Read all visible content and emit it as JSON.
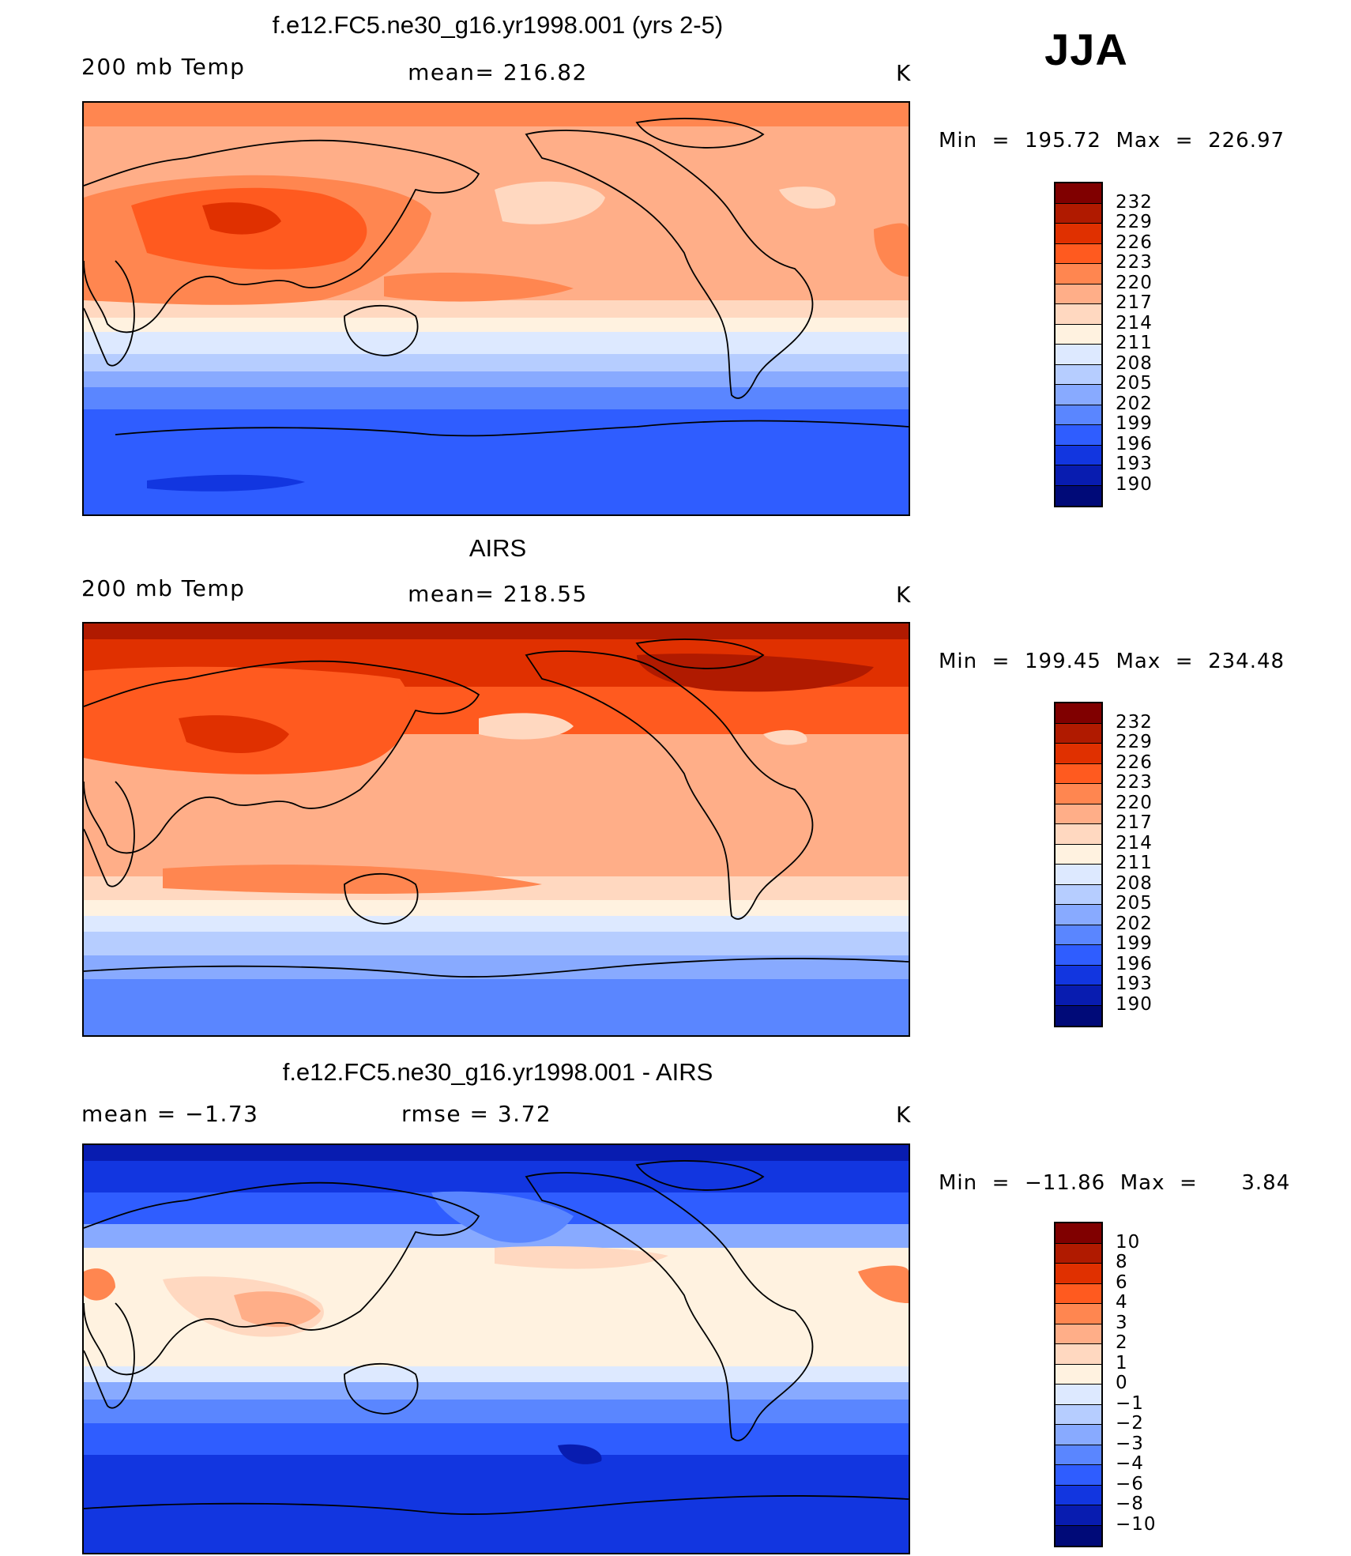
{
  "season": "JJA",
  "panels": [
    {
      "id": "model",
      "title": "f.e12.FC5.ne30_g16.yr1998.001 (yrs 2-5)",
      "left_label": "200 mb Temp",
      "center_label": "mean=  216.82",
      "units": "K",
      "minmax": "Min  =  195.72  Max  =  226.97",
      "levels": [
        "232",
        "229",
        "226",
        "223",
        "220",
        "217",
        "214",
        "211",
        "208",
        "205",
        "202",
        "199",
        "196",
        "193",
        "190"
      ],
      "colors": [
        "#800000",
        "#b01a00",
        "#e03000",
        "#ff5a1f",
        "#ff8650",
        "#ffae88",
        "#ffd8c0",
        "#fff2e0",
        "#dde9ff",
        "#b6cdff",
        "#88aaff",
        "#5a86ff",
        "#2f5dff",
        "#1236e0",
        "#081cb0",
        "#000a78"
      ]
    },
    {
      "id": "obs",
      "title": "AIRS",
      "left_label": "200 mb Temp",
      "center_label": "mean=  218.55",
      "units": "K",
      "minmax": "Min  =  199.45  Max  =  234.48",
      "levels": [
        "232",
        "229",
        "226",
        "223",
        "220",
        "217",
        "214",
        "211",
        "208",
        "205",
        "202",
        "199",
        "196",
        "193",
        "190"
      ],
      "colors": [
        "#800000",
        "#b01a00",
        "#e03000",
        "#ff5a1f",
        "#ff8650",
        "#ffae88",
        "#ffd8c0",
        "#fff2e0",
        "#dde9ff",
        "#b6cdff",
        "#88aaff",
        "#5a86ff",
        "#2f5dff",
        "#1236e0",
        "#081cb0",
        "#000a78"
      ]
    },
    {
      "id": "diff",
      "title": "f.e12.FC5.ne30_g16.yr1998.001 - AIRS",
      "left_label": "mean =    −1.73",
      "center_label": "rmse =     3.72",
      "units": "K",
      "minmax": "Min  =  −11.86  Max  =      3.84",
      "levels": [
        "10",
        "8",
        "6",
        "4",
        "3",
        "2",
        "1",
        "0",
        "−1",
        "−2",
        "−3",
        "−4",
        "−6",
        "−8",
        "−10"
      ],
      "colors": [
        "#800000",
        "#b01a00",
        "#e03000",
        "#ff5a1f",
        "#ff8650",
        "#ffae88",
        "#ffd8c0",
        "#fff2e0",
        "#dde9ff",
        "#b6cdff",
        "#88aaff",
        "#5a86ff",
        "#2f5dff",
        "#1236e0",
        "#081cb0",
        "#000a78"
      ]
    }
  ]
}
